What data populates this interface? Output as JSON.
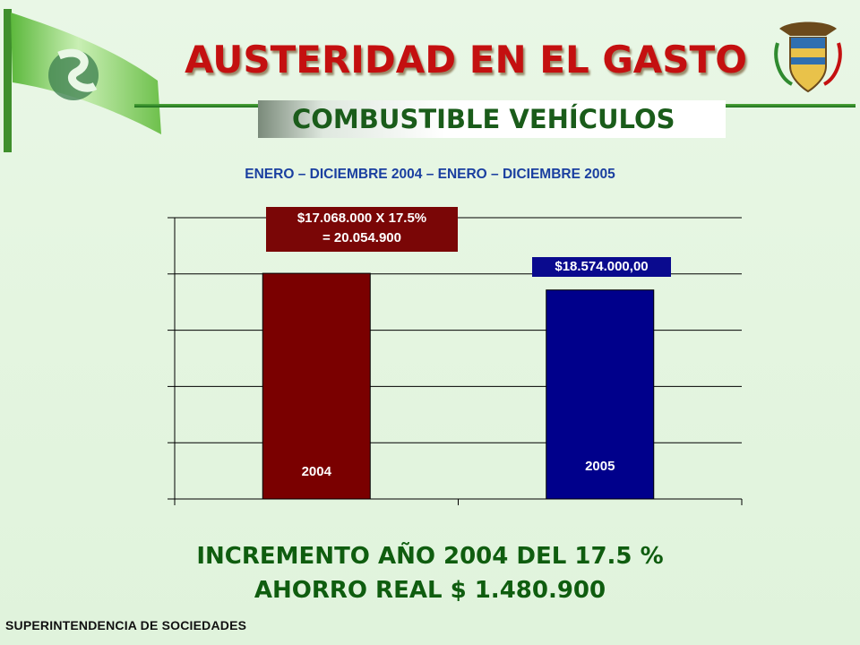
{
  "header": {
    "title": "AUSTERIDAD EN EL GASTO",
    "subtitle": "COMBUSTIBLE VEHÍCULOS",
    "period": "ENERO – DICIEMBRE 2004 – ENERO – DICIEMBRE 2005"
  },
  "colors": {
    "title": "#c41010",
    "subtitle": "#1a5c1a",
    "period": "#1a3fa0",
    "bar_2004": "#7a0000",
    "bar_2005": "#00008b",
    "summary": "#0f5d0f"
  },
  "icons": {
    "logo": "superintendencia-flag-logo",
    "emblem": "colombia-coat-of-arms"
  },
  "chart_data": {
    "type": "bar",
    "categories": [
      "2004",
      "2005"
    ],
    "values": [
      20054900,
      18574000
    ],
    "data_labels": [
      "$17.068.000 X 17.5%\n= 20.054.900",
      "$18.574.000,00"
    ],
    "ylim": [
      0,
      25000000
    ],
    "yticks": 5,
    "grid": true,
    "legend": "none",
    "title": "",
    "xlabel": "",
    "ylabel": ""
  },
  "summary": {
    "line1": "INCREMENTO AÑO 2004 DEL 17.5 %",
    "line2": "AHORRO REAL $ 1.480.900"
  },
  "footer": {
    "org": "SUPERINTENDENCIA DE SOCIEDADES"
  }
}
